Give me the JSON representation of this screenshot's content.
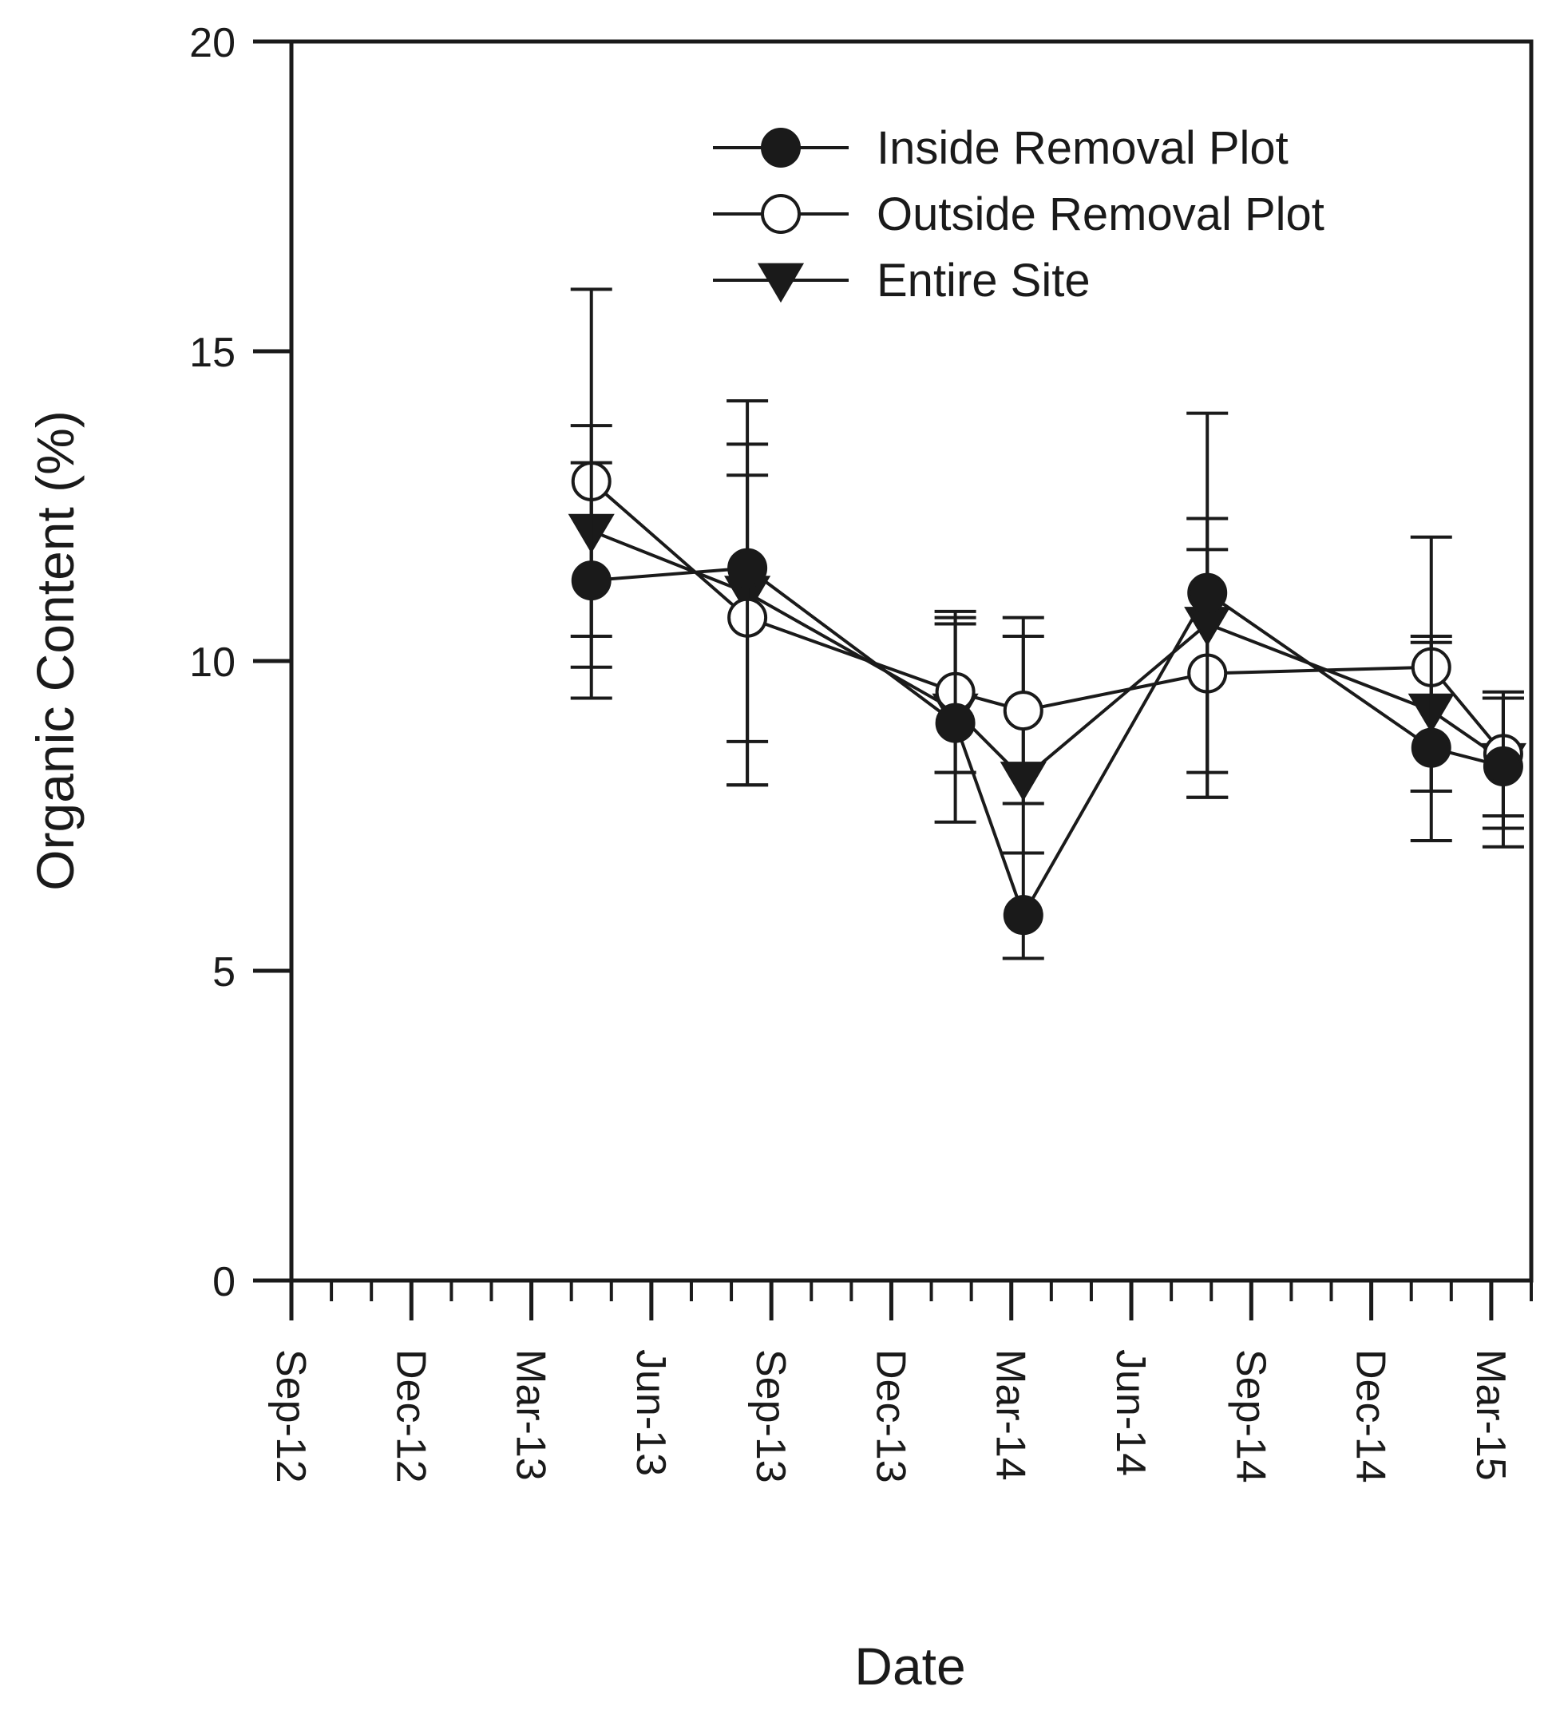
{
  "chart_data": {
    "type": "line",
    "title": "",
    "xlabel": "Date",
    "ylabel": "Organic Content (%)",
    "ylim": [
      0,
      20
    ],
    "yticks": [
      0,
      5,
      10,
      15,
      20
    ],
    "xlim_months": [
      0,
      31
    ],
    "xticks": [
      {
        "label": "Sep-12",
        "month": 0
      },
      {
        "label": "Dec-12",
        "month": 3
      },
      {
        "label": "Mar-13",
        "month": 6
      },
      {
        "label": "Jun-13",
        "month": 9
      },
      {
        "label": "Sep-13",
        "month": 12
      },
      {
        "label": "Dec-13",
        "month": 15
      },
      {
        "label": "Mar-14",
        "month": 18
      },
      {
        "label": "Jun-14",
        "month": 21
      },
      {
        "label": "Sep-14",
        "month": 24
      },
      {
        "label": "Dec-14",
        "month": 27
      },
      {
        "label": "Mar-15",
        "month": 30
      }
    ],
    "x": [
      7.5,
      11.4,
      16.6,
      18.3,
      22.9,
      28.5,
      30.3
    ],
    "series": [
      {
        "name": "Inside Removal Plot",
        "marker": "filled-circle",
        "values": [
          11.3,
          11.5,
          9.0,
          5.9,
          11.1,
          8.6,
          8.3
        ],
        "err_low": [
          9.9,
          8.7,
          7.4,
          5.2,
          8.2,
          7.9,
          7.0
        ],
        "err_high": [
          13.8,
          14.2,
          10.6,
          6.9,
          14.0,
          10.3,
          9.4
        ]
      },
      {
        "name": "Outside Removal Plot",
        "marker": "open-circle",
        "values": [
          12.9,
          10.7,
          9.5,
          9.2,
          9.8,
          9.9,
          8.5
        ],
        "err_low": [
          9.4,
          8.0,
          8.2,
          7.7,
          7.8,
          7.9,
          7.3
        ],
        "err_high": [
          16.0,
          13.0,
          10.8,
          10.7,
          11.8,
          12.0,
          9.5
        ]
      },
      {
        "name": "Entire Site",
        "marker": "filled-triangle-down",
        "values": [
          12.1,
          11.1,
          9.2,
          8.1,
          10.6,
          9.2,
          8.4
        ],
        "err_low": [
          10.4,
          8.0,
          8.2,
          6.9,
          7.8,
          7.1,
          7.5
        ],
        "err_high": [
          13.2,
          13.5,
          10.7,
          10.4,
          12.3,
          10.4,
          9.4
        ]
      }
    ],
    "legend_position": "top-right",
    "grid": false
  }
}
